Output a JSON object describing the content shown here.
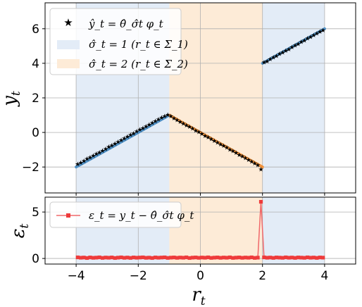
{
  "chart_data": [
    {
      "type": "scatter",
      "xlim": [
        -5,
        5
      ],
      "ylim": [
        -3.5,
        7.5
      ],
      "xticks": [
        -4,
        -2,
        0,
        2,
        4
      ],
      "yticks": [
        -2,
        0,
        2,
        4,
        6
      ],
      "xtick_labels": [
        "",
        "",
        "",
        "",
        ""
      ],
      "ytick_labels": [
        "−2",
        "0",
        "2",
        "4",
        "6"
      ],
      "ylabel": "y_t",
      "grid": true,
      "legend_location": "upper left",
      "regions": [
        {
          "name": "σ̂_t = 1 (r_t ∈ Σ_1)",
          "x0": -4,
          "x1": -1,
          "color": "#e3ecf7"
        },
        {
          "name": "σ̂_t = 2 (r_t ∈ Σ_2)",
          "x0": -1,
          "x1": 2,
          "color": "#fdebd7"
        },
        {
          "name": "",
          "x0": 2,
          "x1": 4,
          "color": "#e3ecf7"
        }
      ],
      "true_lines": [
        {
          "x": [
            -4,
            -1
          ],
          "y": [
            -2,
            1
          ],
          "color": "#4e8fc4"
        },
        {
          "x": [
            -1,
            2
          ],
          "y": [
            1,
            -2
          ],
          "color": "#f0913a"
        },
        {
          "x": [
            2,
            4
          ],
          "y": [
            4,
            6
          ],
          "color": "#4e8fc4"
        }
      ],
      "series": [
        {
          "name": "ŷ_t = θ̂_σ̂t φ_t",
          "marker": "star",
          "color": "#000000",
          "x": [
            -3.95,
            -3.85,
            -3.75,
            -3.65,
            -3.55,
            -3.45,
            -3.35,
            -3.25,
            -3.15,
            -3.05,
            -2.95,
            -2.85,
            -2.75,
            -2.65,
            -2.55,
            -2.45,
            -2.35,
            -2.25,
            -2.15,
            -2.05,
            -1.95,
            -1.85,
            -1.75,
            -1.65,
            -1.55,
            -1.45,
            -1.35,
            -1.25,
            -1.15,
            -1.05,
            -0.95,
            -0.85,
            -0.75,
            -0.65,
            -0.55,
            -0.45,
            -0.35,
            -0.25,
            -0.15,
            -0.05,
            0.05,
            0.15,
            0.25,
            0.35,
            0.45,
            0.55,
            0.65,
            0.75,
            0.85,
            0.95,
            1.05,
            1.15,
            1.25,
            1.35,
            1.45,
            1.55,
            1.65,
            1.75,
            1.85,
            1.95,
            2.05,
            2.15,
            2.25,
            2.35,
            2.45,
            2.55,
            2.65,
            2.75,
            2.85,
            2.95,
            3.05,
            3.15,
            3.25,
            3.35,
            3.45,
            3.55,
            3.65,
            3.75,
            3.85,
            3.95
          ],
          "y": [
            -1.8,
            -1.72,
            -1.62,
            -1.5,
            -1.43,
            -1.32,
            -1.22,
            -1.14,
            -1.03,
            -0.93,
            -0.82,
            -0.73,
            -0.63,
            -0.52,
            -0.42,
            -0.33,
            -0.22,
            -0.12,
            -0.03,
            0.08,
            0.18,
            0.27,
            0.38,
            0.47,
            0.58,
            0.68,
            0.77,
            0.87,
            0.97,
            1.05,
            0.96,
            0.84,
            0.74,
            0.63,
            0.53,
            0.44,
            0.34,
            0.24,
            0.13,
            0.04,
            -0.06,
            -0.17,
            -0.26,
            -0.36,
            -0.47,
            -0.56,
            -0.67,
            -0.76,
            -0.86,
            -0.97,
            -1.06,
            -1.16,
            -1.27,
            -1.36,
            -1.47,
            -1.56,
            -1.66,
            -1.76,
            -1.87,
            -2.12,
            4.07,
            4.14,
            4.26,
            4.36,
            4.44,
            4.56,
            4.65,
            4.76,
            4.84,
            4.95,
            5.06,
            5.14,
            5.26,
            5.35,
            5.46,
            5.55,
            5.65,
            5.74,
            5.86,
            5.94
          ]
        }
      ]
    },
    {
      "type": "line",
      "xlim": [
        -5,
        5
      ],
      "ylim": [
        -0.6,
        6.6
      ],
      "xticks": [
        -4,
        -2,
        0,
        2,
        4
      ],
      "yticks": [
        0,
        5
      ],
      "xtick_labels": [
        "−4",
        "−2",
        "0",
        "2",
        "4"
      ],
      "ytick_labels": [
        "0",
        "5"
      ],
      "xlabel": "r_t",
      "ylabel": "ε_t",
      "grid": true,
      "legend_location": "upper left",
      "regions": [
        {
          "x0": -4,
          "x1": -1,
          "color": "#e3ecf7"
        },
        {
          "x0": -1,
          "x1": 2,
          "color": "#fdebd7"
        },
        {
          "x0": 2,
          "x1": 4,
          "color": "#e3ecf7"
        }
      ],
      "series": [
        {
          "name": "ε_t = y_t − θ̂_σ̂t φ_t",
          "marker": "square",
          "color": "#f0686a",
          "x": [
            -3.95,
            -3.85,
            -3.75,
            -3.65,
            -3.55,
            -3.45,
            -3.35,
            -3.25,
            -3.15,
            -3.05,
            -2.95,
            -2.85,
            -2.75,
            -2.65,
            -2.55,
            -2.45,
            -2.35,
            -2.25,
            -2.15,
            -2.05,
            -1.95,
            -1.85,
            -1.75,
            -1.65,
            -1.55,
            -1.45,
            -1.35,
            -1.25,
            -1.15,
            -1.05,
            -0.95,
            -0.85,
            -0.75,
            -0.65,
            -0.55,
            -0.45,
            -0.35,
            -0.25,
            -0.15,
            -0.05,
            0.05,
            0.15,
            0.25,
            0.35,
            0.45,
            0.55,
            0.65,
            0.75,
            0.85,
            0.95,
            1.05,
            1.15,
            1.25,
            1.35,
            1.45,
            1.55,
            1.65,
            1.75,
            1.85,
            1.95,
            2.05,
            2.15,
            2.25,
            2.35,
            2.45,
            2.55,
            2.65,
            2.75,
            2.85,
            2.95,
            3.05,
            3.15,
            3.25,
            3.35,
            3.45,
            3.55,
            3.65,
            3.75,
            3.85,
            3.95
          ],
          "y": [
            0.12,
            0.08,
            0.1,
            0.05,
            0.11,
            0.07,
            0.09,
            0.12,
            0.06,
            0.1,
            0.08,
            0.11,
            0.05,
            0.09,
            0.12,
            0.07,
            0.1,
            0.06,
            0.11,
            0.08,
            0.1,
            0.12,
            0.07,
            0.09,
            0.05,
            0.11,
            0.08,
            0.1,
            0.12,
            0.06,
            0.09,
            0.11,
            0.07,
            0.1,
            0.08,
            0.12,
            0.05,
            0.09,
            0.11,
            0.07,
            0.1,
            0.08,
            0.12,
            0.06,
            0.09,
            0.11,
            0.07,
            0.1,
            0.08,
            0.12,
            0.06,
            0.09,
            0.11,
            0.07,
            0.1,
            0.08,
            0.12,
            0.06,
            0.09,
            6.1,
            0.12,
            0.08,
            0.1,
            0.06,
            0.11,
            0.09,
            0.07,
            0.12,
            0.08,
            0.1,
            0.06,
            0.11,
            0.09,
            0.07,
            0.12,
            0.08,
            0.1,
            0.06,
            0.11,
            0.09
          ]
        }
      ]
    }
  ]
}
